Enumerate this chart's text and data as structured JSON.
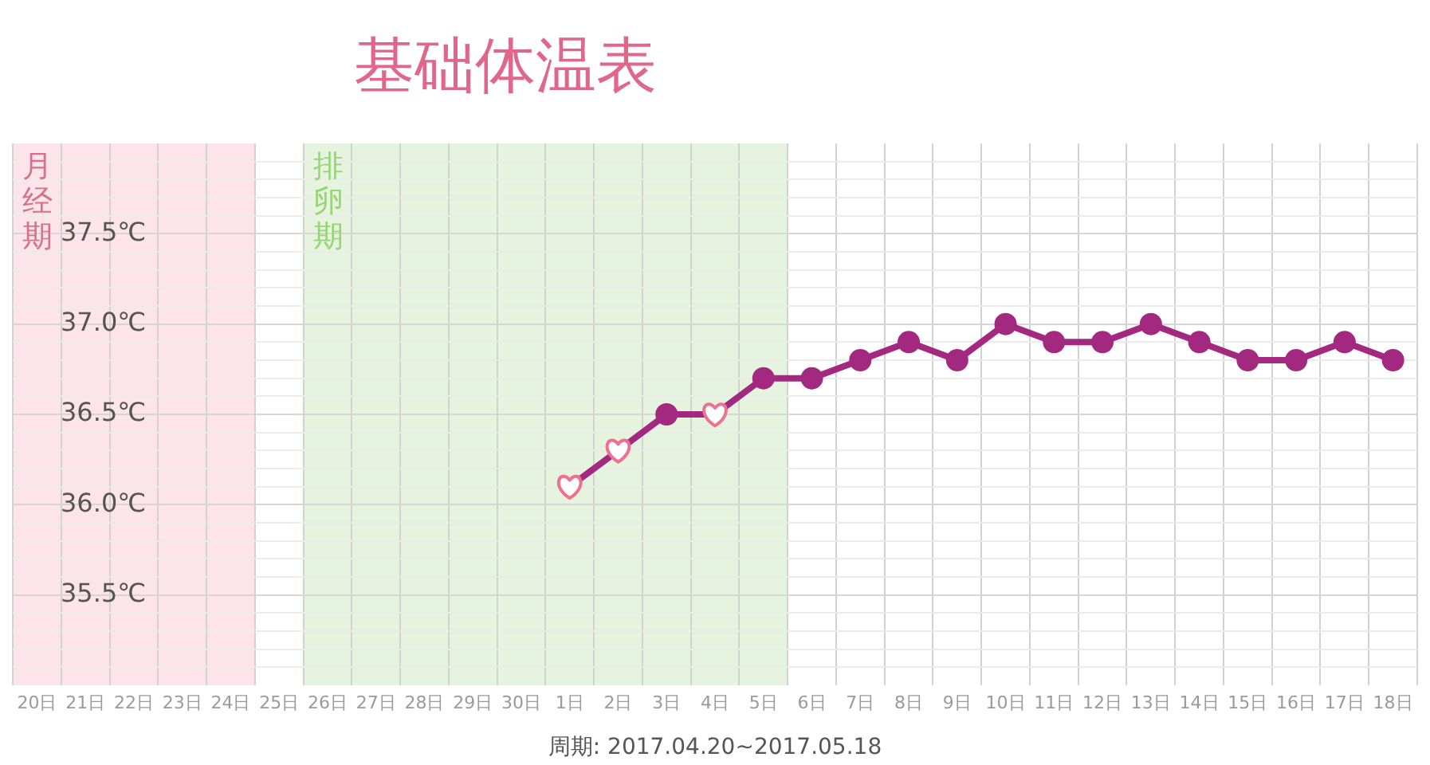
{
  "chart_data": {
    "type": "line",
    "title": "基础体温表",
    "xlabel": "周期: 2017.04.20~2017.05.18",
    "categories": [
      "20日",
      "21日",
      "22日",
      "23日",
      "24日",
      "25日",
      "26日",
      "27日",
      "28日",
      "29日",
      "30日",
      "1日",
      "2日",
      "3日",
      "4日",
      "5日",
      "6日",
      "7日",
      "8日",
      "9日",
      "10日",
      "11日",
      "12日",
      "13日",
      "14日",
      "15日",
      "16日",
      "17日",
      "18日"
    ],
    "series": [
      {
        "type": "line",
        "color": "#a3287f",
        "marker": "circle",
        "values": [
          null,
          null,
          null,
          null,
          null,
          null,
          null,
          null,
          null,
          null,
          null,
          36.1,
          36.3,
          36.5,
          36.5,
          36.7,
          36.7,
          36.8,
          36.9,
          36.8,
          37.0,
          36.9,
          36.9,
          37.0,
          36.9,
          36.8,
          36.8,
          36.9,
          36.8
        ]
      },
      {
        "type": "scatter",
        "color": "#ef7090",
        "values": [
          null,
          null,
          null,
          null,
          null,
          null,
          null,
          null,
          null,
          null,
          null,
          36.1,
          36.3,
          null,
          36.5,
          null,
          null,
          null,
          null,
          null,
          null,
          null,
          null,
          null,
          null,
          null,
          null,
          null,
          null
        ]
      }
    ],
    "ylim": [
      35.0,
      38.0
    ],
    "yticks": [
      {
        "value": 35.1,
        "label": null
      },
      {
        "value": 35.2,
        "label": null
      },
      {
        "value": 35.3,
        "label": null
      },
      {
        "value": 35.4,
        "label": null
      },
      {
        "value": 35.5,
        "label": "35.5℃"
      },
      {
        "value": 35.6,
        "label": null
      },
      {
        "value": 35.7,
        "label": null
      },
      {
        "value": 35.8,
        "label": null
      },
      {
        "value": 35.9,
        "label": null
      },
      {
        "value": 36.0,
        "label": "36.0℃"
      },
      {
        "value": 36.1,
        "label": null
      },
      {
        "value": 36.2,
        "label": null
      },
      {
        "value": 36.3,
        "label": null
      },
      {
        "value": 36.4,
        "label": null
      },
      {
        "value": 36.5,
        "label": "36.5℃"
      },
      {
        "value": 36.6,
        "label": null
      },
      {
        "value": 36.7,
        "label": null
      },
      {
        "value": 36.8,
        "label": null
      },
      {
        "value": 36.9,
        "label": null
      },
      {
        "value": 37.0,
        "label": "37.0℃"
      },
      {
        "value": 37.1,
        "label": null
      },
      {
        "value": 37.2,
        "label": null
      },
      {
        "value": 37.3,
        "label": null
      },
      {
        "value": 37.4,
        "label": null
      },
      {
        "value": 37.5,
        "label": "37.5℃"
      },
      {
        "value": 37.6,
        "label": null
      },
      {
        "value": 37.7,
        "label": null
      },
      {
        "value": 37.8,
        "label": null
      },
      {
        "value": 37.9,
        "label": null
      }
    ],
    "grid": true,
    "legend": false,
    "bands": [
      {
        "axis": "x",
        "from": "20日",
        "to": "24日",
        "label": "月经期",
        "color": "#fde3ea"
      },
      {
        "axis": "x",
        "from": "26日",
        "to": "5日",
        "label": "排卵期",
        "color": "#e6f3df"
      }
    ]
  }
}
